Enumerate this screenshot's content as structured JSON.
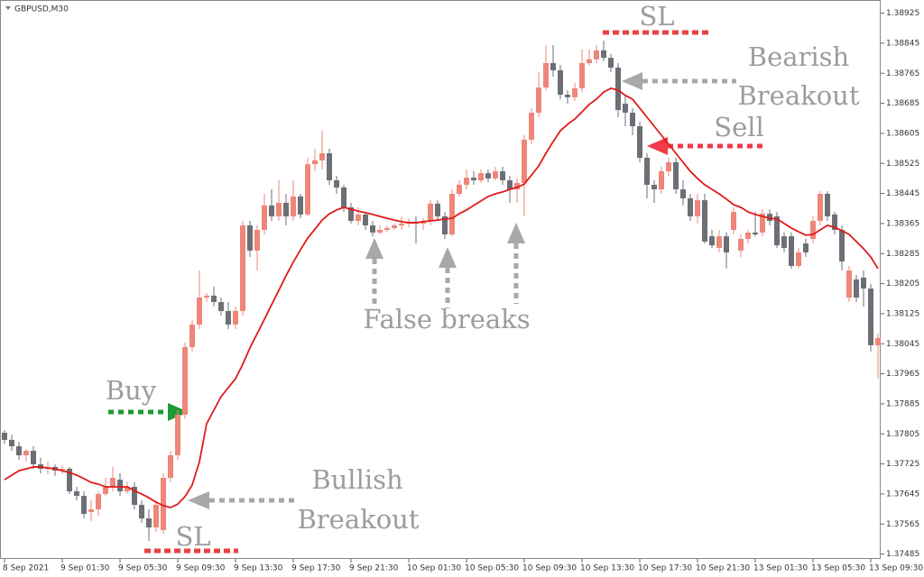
{
  "chart_data": {
    "type": "candlestick",
    "title": "GBPUSD,M30",
    "categories": [
      "8 Sep 2021",
      null,
      null,
      null,
      null,
      null,
      null,
      null,
      "9 Sep 01:30",
      null,
      null,
      null,
      null,
      null,
      null,
      null,
      "9 Sep 05:30",
      null,
      null,
      null,
      null,
      null,
      null,
      null,
      "9 Sep 09:30",
      null,
      null,
      null,
      null,
      null,
      null,
      null,
      "9 Sep 13:30",
      null,
      null,
      null,
      null,
      null,
      null,
      null,
      "9 Sep 17:30",
      null,
      null,
      null,
      null,
      null,
      null,
      null,
      "9 Sep 21:30",
      null,
      null,
      null,
      null,
      null,
      null,
      null,
      "10 Sep 01:30",
      null,
      null,
      null,
      null,
      null,
      null,
      null,
      "10 Sep 05:30",
      null,
      null,
      null,
      null,
      null,
      null,
      null,
      "10 Sep 09:30",
      null,
      null,
      null,
      null,
      null,
      null,
      null,
      "10 Sep 13:30",
      null,
      null,
      null,
      null,
      null,
      null,
      null,
      "10 Sep 17:30",
      null,
      null,
      null,
      null,
      null,
      null,
      null,
      "10 Sep 21:30",
      null,
      null,
      null,
      null,
      null,
      null,
      null,
      "13 Sep 01:30",
      null,
      null,
      null,
      null,
      null,
      null,
      null,
      "13 Sep 05:30",
      null,
      null,
      null,
      null,
      null,
      null,
      null,
      "13 Sep 09:30",
      null
    ],
    "open": [
      1.37808,
      1.37789,
      1.37772,
      1.37748,
      1.3776,
      1.37724,
      1.37712,
      1.37717,
      1.37707,
      1.37712,
      1.37652,
      1.3764,
      1.37597,
      1.37604,
      1.37645,
      1.37664,
      1.37683,
      1.37652,
      1.37664,
      1.37616,
      1.3758,
      1.37556,
      1.37549,
      1.37688,
      1.37748,
      1.37856,
      1.38036,
      1.38096,
      1.38168,
      1.38173,
      1.38156,
      1.38132,
      1.38096,
      1.38132,
      1.3836,
      1.38293,
      1.38348,
      1.38413,
      1.38384,
      1.3842,
      1.38384,
      1.38437,
      1.38389,
      1.38523,
      1.38533,
      1.38552,
      1.3848,
      1.38461,
      1.38408,
      1.38372,
      1.38389,
      1.3836,
      1.38341,
      1.38348,
      1.38353,
      1.3836,
      1.38365,
      1.3837,
      1.38365,
      1.38372,
      1.38418,
      1.38384,
      1.38336,
      1.38444,
      1.38468,
      1.38487,
      1.3848,
      1.38499,
      1.38485,
      1.38504,
      1.3848,
      1.38456,
      1.38473,
      1.38588,
      1.3866,
      1.38727,
      1.38792,
      1.38773,
      1.38708,
      1.38701,
      1.38725,
      1.38792,
      1.38802,
      1.38826,
      1.38806,
      1.3878,
      1.38684,
      1.3866,
      1.38624,
      1.3854,
      1.38468,
      1.38456,
      1.38504,
      1.38528,
      1.38456,
      1.38432,
      1.38384,
      1.38427,
      1.38331,
      1.383,
      1.38331,
      1.38348,
      1.38293,
      1.38324,
      1.38341,
      1.38341,
      1.38391,
      1.38384,
      1.38331,
      1.38331,
      1.38252,
      1.38312,
      1.38324,
      1.38372,
      1.38444,
      1.38389,
      1.38348,
      1.38168,
      1.38216,
      1.38221,
      1.38192,
      1.38041
    ],
    "high": [
      1.37815,
      1.37803,
      1.37784,
      1.37765,
      1.37772,
      1.37741,
      1.37731,
      1.37724,
      1.37722,
      1.37717,
      1.37664,
      1.37652,
      1.37628,
      1.37652,
      1.37688,
      1.37717,
      1.377,
      1.37676,
      1.37676,
      1.37628,
      1.37604,
      1.37628,
      1.377,
      1.3776,
      1.37868,
      1.38048,
      1.38108,
      1.3824,
      1.3818,
      1.38197,
      1.38168,
      1.38156,
      1.38144,
      1.38372,
      1.38372,
      1.3836,
      1.38444,
      1.38456,
      1.3848,
      1.38444,
      1.3848,
      1.38444,
      1.3854,
      1.38564,
      1.38612,
      1.38564,
      1.38492,
      1.38468,
      1.3842,
      1.38408,
      1.38396,
      1.38372,
      1.3836,
      1.3836,
      1.38365,
      1.38384,
      1.38379,
      1.38384,
      1.38379,
      1.38427,
      1.38427,
      1.38396,
      1.38456,
      1.3848,
      1.38509,
      1.38504,
      1.38509,
      1.38509,
      1.38516,
      1.38516,
      1.38492,
      1.38485,
      1.386,
      1.38672,
      1.38768,
      1.3884,
      1.3884,
      1.38787,
      1.3872,
      1.38739,
      1.38828,
      1.38828,
      1.3884,
      1.38852,
      1.38816,
      1.38792,
      1.38708,
      1.38672,
      1.38636,
      1.38552,
      1.3848,
      1.38516,
      1.3854,
      1.3854,
      1.3848,
      1.38444,
      1.38444,
      1.38444,
      1.38348,
      1.38348,
      1.38341,
      1.38408,
      1.38336,
      1.38348,
      1.38396,
      1.38403,
      1.38403,
      1.38396,
      1.38341,
      1.38341,
      1.383,
      1.38324,
      1.38384,
      1.38451,
      1.38451,
      1.38396,
      1.3836,
      1.38252,
      1.38228,
      1.3824,
      1.38204,
      1.38072
    ],
    "low": [
      1.37779,
      1.3776,
      1.37736,
      1.37731,
      1.37712,
      1.377,
      1.37698,
      1.37693,
      1.37698,
      1.37645,
      1.37628,
      1.3758,
      1.37573,
      1.37587,
      1.3764,
      1.37652,
      1.3764,
      1.37645,
      1.37604,
      1.37568,
      1.3752,
      1.37544,
      1.37539,
      1.37676,
      1.37736,
      1.37844,
      1.38024,
      1.38084,
      1.38156,
      1.38144,
      1.3812,
      1.38084,
      1.38084,
      1.3812,
      1.38276,
      1.3824,
      1.38336,
      1.38372,
      1.38372,
      1.3836,
      1.38372,
      1.38379,
      1.38384,
      1.38504,
      1.38509,
      1.38468,
      1.38444,
      1.38396,
      1.38365,
      1.3836,
      1.38348,
      1.38331,
      1.38336,
      1.38341,
      1.38348,
      1.38348,
      1.38355,
      1.38312,
      1.38348,
      1.3836,
      1.38372,
      1.38324,
      1.38331,
      1.38437,
      1.38456,
      1.38468,
      1.38473,
      1.38475,
      1.3848,
      1.38468,
      1.3842,
      1.3842,
      1.38384,
      1.38576,
      1.38648,
      1.3872,
      1.38756,
      1.38696,
      1.38684,
      1.38691,
      1.38715,
      1.38787,
      1.38792,
      1.38797,
      1.38768,
      1.38648,
      1.38624,
      1.386,
      1.38528,
      1.38432,
      1.3842,
      1.38444,
      1.38492,
      1.38444,
      1.38413,
      1.38372,
      1.38365,
      1.38312,
      1.383,
      1.38288,
      1.38245,
      1.38336,
      1.38276,
      1.38312,
      1.38331,
      1.38331,
      1.3836,
      1.383,
      1.38288,
      1.38245,
      1.38245,
      1.38276,
      1.38312,
      1.3836,
      1.38372,
      1.38336,
      1.3824,
      1.38156,
      1.38156,
      1.38144,
      1.38024,
      1.37952
    ],
    "close": [
      1.37789,
      1.37772,
      1.37748,
      1.3776,
      1.37724,
      1.37712,
      1.37717,
      1.37707,
      1.37712,
      1.37652,
      1.3764,
      1.37592,
      1.37604,
      1.37645,
      1.37664,
      1.37688,
      1.37652,
      1.37664,
      1.37616,
      1.3758,
      1.37556,
      1.37616,
      1.37688,
      1.37748,
      1.37856,
      1.38036,
      1.38096,
      1.38168,
      1.38173,
      1.38156,
      1.38132,
      1.38096,
      1.38132,
      1.3836,
      1.38293,
      1.38348,
      1.38413,
      1.38384,
      1.3842,
      1.38384,
      1.38437,
      1.38389,
      1.38523,
      1.38533,
      1.38552,
      1.3848,
      1.38461,
      1.38408,
      1.38372,
      1.38389,
      1.3836,
      1.38341,
      1.38348,
      1.38353,
      1.3836,
      1.38365,
      1.3837,
      1.38365,
      1.38372,
      1.38418,
      1.38384,
      1.38336,
      1.38444,
      1.38468,
      1.38487,
      1.3848,
      1.38499,
      1.38485,
      1.38504,
      1.3848,
      1.38456,
      1.38473,
      1.38588,
      1.3866,
      1.38727,
      1.38792,
      1.38773,
      1.38708,
      1.38701,
      1.38725,
      1.38792,
      1.38802,
      1.38826,
      1.38806,
      1.3878,
      1.38667,
      1.3866,
      1.38624,
      1.3854,
      1.38468,
      1.38456,
      1.38504,
      1.38528,
      1.38456,
      1.38432,
      1.38384,
      1.38427,
      1.38317,
      1.38307,
      1.38331,
      1.38288,
      1.38396,
      1.38324,
      1.38341,
      1.38336,
      1.38391,
      1.38372,
      1.38307,
      1.383,
      1.38252,
      1.38288,
      1.38288,
      1.38372,
      1.38444,
      1.38384,
      1.38348,
      1.38264,
      1.3824,
      1.38168,
      1.38192,
      1.38041,
      1.3806
    ],
    "up_color": "#ee8679",
    "down_color": "#6c6f75",
    "lines": [
      {
        "color": "#e01a1a",
        "values": [
          1.37683,
          1.37695,
          1.37707,
          1.37712,
          1.37717,
          1.37717,
          1.37714,
          1.37712,
          1.37707,
          1.37702,
          1.37695,
          1.37686,
          1.37676,
          1.37671,
          1.37664,
          1.37664,
          1.37664,
          1.37664,
          1.37654,
          1.37645,
          1.37635,
          1.37623,
          1.37614,
          1.37609,
          1.37618,
          1.37638,
          1.37669,
          1.37731,
          1.37832,
          1.37868,
          1.37904,
          1.37928,
          1.37952,
          1.3799,
          1.38034,
          1.38072,
          1.3811,
          1.38149,
          1.38187,
          1.38226,
          1.38262,
          1.38295,
          1.38326,
          1.3835,
          1.38374,
          1.38391,
          1.38401,
          1.38408,
          1.38403,
          1.38398,
          1.38394,
          1.38389,
          1.38384,
          1.38379,
          1.38374,
          1.3837,
          1.38367,
          1.38367,
          1.3837,
          1.38372,
          1.38374,
          1.38377,
          1.38379,
          1.38391,
          1.38401,
          1.38413,
          1.38425,
          1.38437,
          1.38444,
          1.38449,
          1.38456,
          1.38461,
          1.3847,
          1.38494,
          1.38518,
          1.38552,
          1.38583,
          1.38612,
          1.38629,
          1.38643,
          1.38662,
          1.38682,
          1.38696,
          1.38715,
          1.38725,
          1.3872,
          1.38706,
          1.38696,
          1.38672,
          1.38648,
          1.38624,
          1.386,
          1.38576,
          1.38552,
          1.38528,
          1.38504,
          1.38485,
          1.38468,
          1.38456,
          1.38444,
          1.3843,
          1.38415,
          1.38408,
          1.38396,
          1.38389,
          1.38384,
          1.38379,
          1.38377,
          1.38365,
          1.38353,
          1.38343,
          1.38334,
          1.38336,
          1.38348,
          1.3836,
          1.38355,
          1.38346,
          1.38336,
          1.38317,
          1.38298,
          1.38276,
          1.38245
        ]
      }
    ],
    "ylim": [
      1.37472,
      1.3896
    ],
    "yticks": [
      1.38925,
      1.38845,
      1.38765,
      1.38685,
      1.38605,
      1.38525,
      1.38445,
      1.38365,
      1.38285,
      1.38205,
      1.38125,
      1.38045,
      1.37965,
      1.37885,
      1.37805,
      1.37725,
      1.37645,
      1.37565,
      1.37485
    ],
    "annotations": [
      "SL",
      "Bearish",
      "Breakout",
      "Sell",
      "False breaks",
      "Buy",
      "Bullish",
      "Breakout",
      "SL"
    ]
  }
}
